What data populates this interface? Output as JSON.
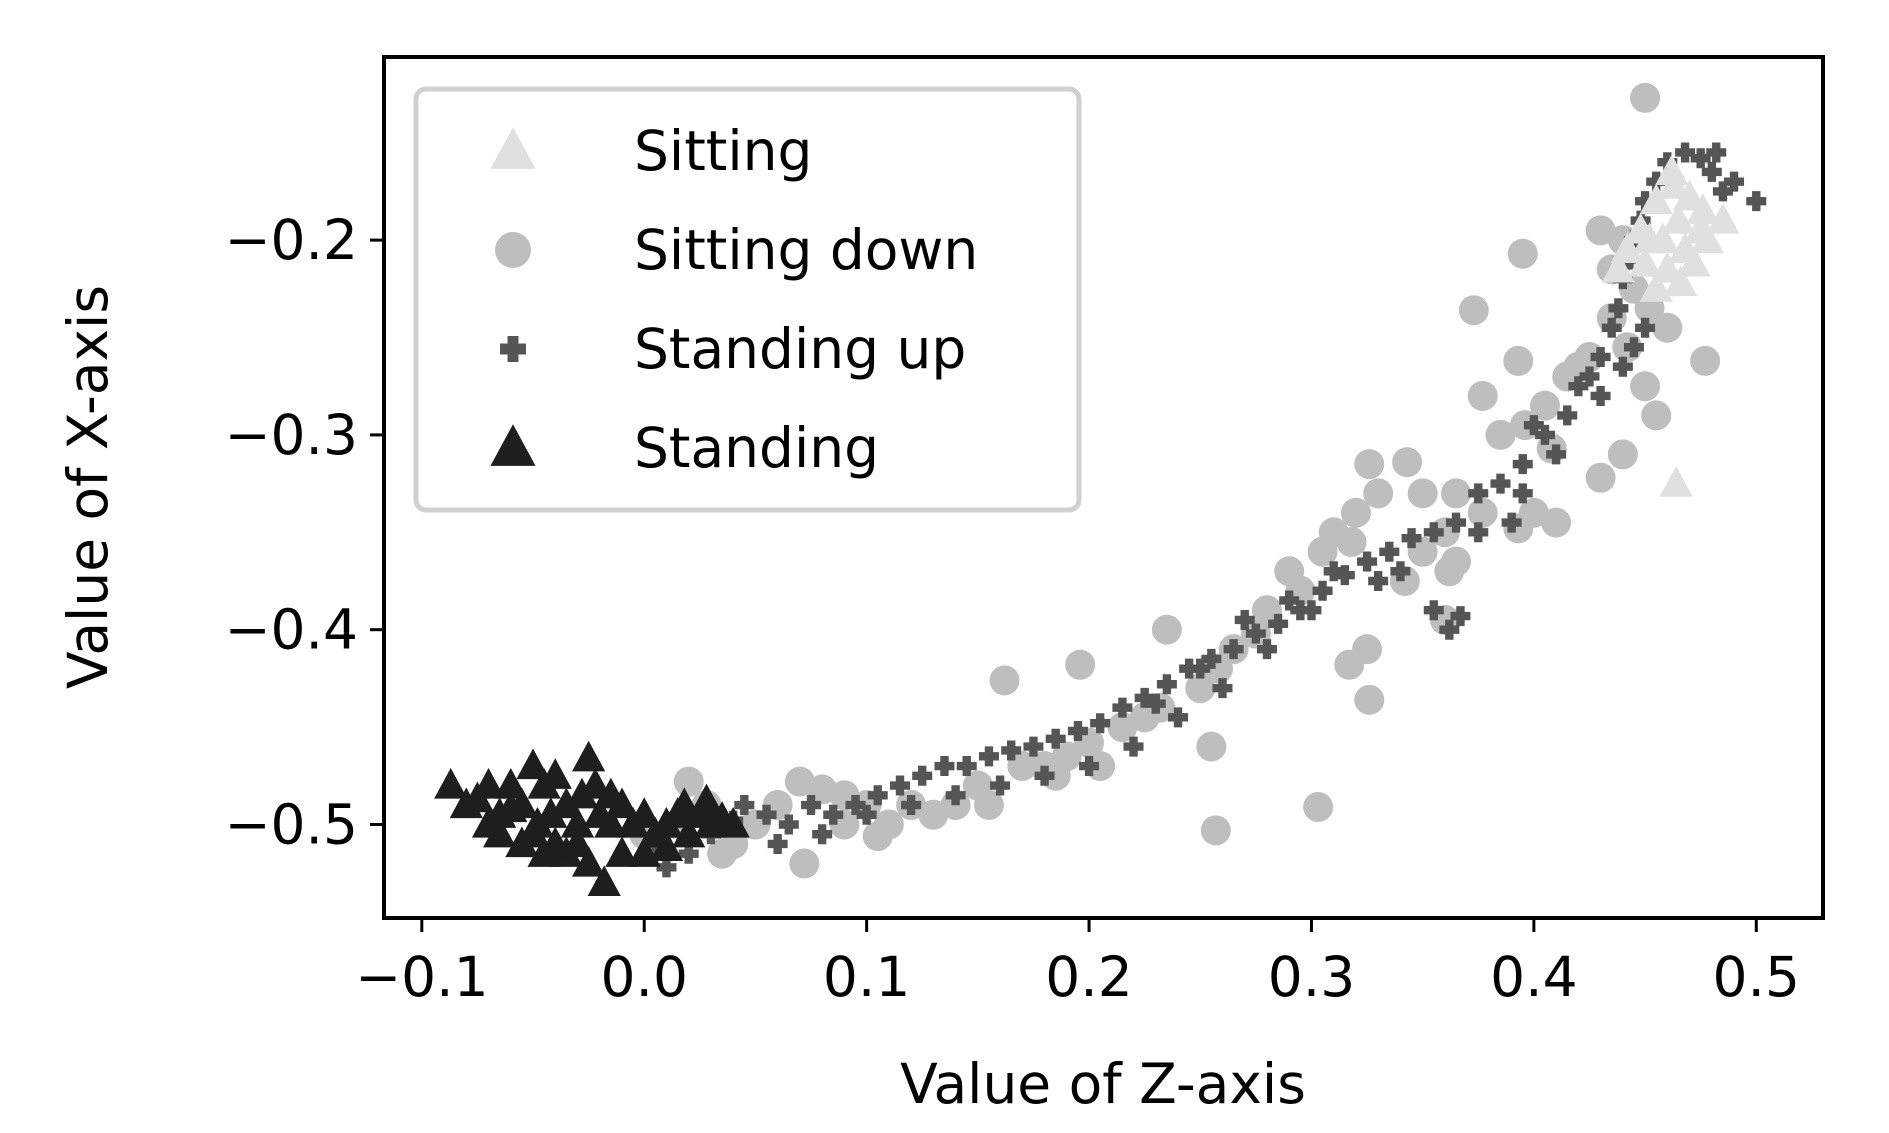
{
  "chart_data": {
    "type": "scatter",
    "title": "",
    "xlabel": "Value of Z-axis",
    "ylabel": "Value of X-axis",
    "xlim": [
      -0.117,
      0.53
    ],
    "ylim": [
      -0.548,
      -0.106
    ],
    "x_ticks": [
      -0.1,
      0.0,
      0.1,
      0.2,
      0.3,
      0.4,
      0.5
    ],
    "x_tick_labels": [
      "−0.1",
      "0.0",
      "0.1",
      "0.2",
      "0.3",
      "0.4",
      "0.5"
    ],
    "y_ticks": [
      -0.2,
      -0.3,
      -0.4,
      -0.5
    ],
    "y_tick_labels": [
      "−0.2",
      "−0.3",
      "−0.4",
      "−0.5"
    ],
    "grid": false,
    "legend_position": "top-left",
    "series": [
      {
        "name": "Sitting",
        "marker": "triangle",
        "color": "#e0e0e0",
        "points": [
          [
            0.462,
            -0.165
          ],
          [
            0.455,
            -0.18
          ],
          [
            0.47,
            -0.178
          ],
          [
            0.448,
            -0.195
          ],
          [
            0.465,
            -0.19
          ],
          [
            0.475,
            -0.195
          ],
          [
            0.442,
            -0.205
          ],
          [
            0.458,
            -0.2
          ],
          [
            0.468,
            -0.205
          ],
          [
            0.478,
            -0.2
          ],
          [
            0.45,
            -0.212
          ],
          [
            0.46,
            -0.215
          ],
          [
            0.472,
            -0.212
          ],
          [
            0.485,
            -0.19
          ],
          [
            0.438,
            -0.215
          ],
          [
            0.455,
            -0.225
          ],
          [
            0.466,
            -0.222
          ],
          [
            0.463,
            -0.172
          ],
          [
            0.452,
            -0.2
          ],
          [
            0.476,
            -0.185
          ],
          [
            0.464,
            -0.325
          ]
        ]
      },
      {
        "name": "Sitting down",
        "marker": "circle",
        "color": "#bebebe",
        "points": [
          [
            0.45,
            -0.127
          ],
          [
            0.395,
            -0.207
          ],
          [
            0.373,
            -0.236
          ],
          [
            0.393,
            -0.262
          ],
          [
            0.377,
            -0.28
          ],
          [
            0.477,
            -0.262
          ],
          [
            0.43,
            -0.195
          ],
          [
            0.44,
            -0.2
          ],
          [
            0.435,
            -0.215
          ],
          [
            0.445,
            -0.225
          ],
          [
            0.452,
            -0.235
          ],
          [
            0.46,
            -0.245
          ],
          [
            0.442,
            -0.255
          ],
          [
            0.425,
            -0.26
          ],
          [
            0.415,
            -0.27
          ],
          [
            0.405,
            -0.285
          ],
          [
            0.396,
            -0.295
          ],
          [
            0.385,
            -0.3
          ],
          [
            0.45,
            -0.275
          ],
          [
            0.455,
            -0.29
          ],
          [
            0.44,
            -0.31
          ],
          [
            0.43,
            -0.322
          ],
          [
            0.41,
            -0.345
          ],
          [
            0.393,
            -0.348
          ],
          [
            0.377,
            -0.34
          ],
          [
            0.36,
            -0.35
          ],
          [
            0.35,
            -0.36
          ],
          [
            0.342,
            -0.375
          ],
          [
            0.365,
            -0.365
          ],
          [
            0.326,
            -0.315
          ],
          [
            0.343,
            -0.314
          ],
          [
            0.35,
            -0.33
          ],
          [
            0.32,
            -0.34
          ],
          [
            0.318,
            -0.355
          ],
          [
            0.305,
            -0.36
          ],
          [
            0.295,
            -0.38
          ],
          [
            0.28,
            -0.39
          ],
          [
            0.275,
            -0.402
          ],
          [
            0.265,
            -0.41
          ],
          [
            0.258,
            -0.42
          ],
          [
            0.25,
            -0.43
          ],
          [
            0.235,
            -0.4
          ],
          [
            0.232,
            -0.44
          ],
          [
            0.225,
            -0.445
          ],
          [
            0.215,
            -0.45
          ],
          [
            0.2,
            -0.458
          ],
          [
            0.19,
            -0.465
          ],
          [
            0.18,
            -0.47
          ],
          [
            0.17,
            -0.47
          ],
          [
            0.162,
            -0.426
          ],
          [
            0.196,
            -0.418
          ],
          [
            0.255,
            -0.46
          ],
          [
            0.257,
            -0.503
          ],
          [
            0.303,
            -0.491
          ],
          [
            0.326,
            -0.436
          ],
          [
            0.317,
            -0.418
          ],
          [
            0.325,
            -0.41
          ],
          [
            0.36,
            -0.395
          ],
          [
            0.362,
            -0.37
          ],
          [
            0.4,
            -0.34
          ],
          [
            0.408,
            -0.307
          ],
          [
            0.365,
            -0.33
          ],
          [
            0.15,
            -0.48
          ],
          [
            0.14,
            -0.49
          ],
          [
            0.13,
            -0.495
          ],
          [
            0.12,
            -0.49
          ],
          [
            0.11,
            -0.5
          ],
          [
            0.1,
            -0.49
          ],
          [
            0.09,
            -0.485
          ],
          [
            0.08,
            -0.482
          ],
          [
            0.07,
            -0.478
          ],
          [
            0.06,
            -0.49
          ],
          [
            0.05,
            -0.5
          ],
          [
            0.04,
            -0.51
          ],
          [
            0.035,
            -0.515
          ],
          [
            0.072,
            -0.52
          ],
          [
            0.105,
            -0.506
          ],
          [
            0.02,
            -0.478
          ],
          [
            0.015,
            -0.5
          ],
          [
            0.0,
            -0.505
          ],
          [
            0.028,
            -0.49
          ],
          [
            0.09,
            -0.5
          ],
          [
            0.155,
            -0.49
          ],
          [
            0.185,
            -0.475
          ],
          [
            0.205,
            -0.47
          ],
          [
            0.29,
            -0.37
          ],
          [
            0.31,
            -0.35
          ],
          [
            0.33,
            -0.33
          ],
          [
            0.42,
            -0.265
          ],
          [
            0.435,
            -0.24
          ]
        ]
      },
      {
        "name": "Standing up",
        "marker": "plus",
        "color": "#555555",
        "points": [
          [
            0.045,
            -0.49
          ],
          [
            0.055,
            -0.495
          ],
          [
            0.065,
            -0.5
          ],
          [
            0.075,
            -0.49
          ],
          [
            0.085,
            -0.495
          ],
          [
            0.095,
            -0.49
          ],
          [
            0.105,
            -0.485
          ],
          [
            0.115,
            -0.48
          ],
          [
            0.125,
            -0.475
          ],
          [
            0.135,
            -0.47
          ],
          [
            0.145,
            -0.47
          ],
          [
            0.155,
            -0.465
          ],
          [
            0.165,
            -0.462
          ],
          [
            0.175,
            -0.46
          ],
          [
            0.185,
            -0.456
          ],
          [
            0.195,
            -0.452
          ],
          [
            0.205,
            -0.448
          ],
          [
            0.215,
            -0.44
          ],
          [
            0.225,
            -0.435
          ],
          [
            0.235,
            -0.428
          ],
          [
            0.245,
            -0.42
          ],
          [
            0.255,
            -0.415
          ],
          [
            0.265,
            -0.41
          ],
          [
            0.275,
            -0.402
          ],
          [
            0.285,
            -0.397
          ],
          [
            0.295,
            -0.39
          ],
          [
            0.305,
            -0.38
          ],
          [
            0.315,
            -0.372
          ],
          [
            0.325,
            -0.365
          ],
          [
            0.335,
            -0.36
          ],
          [
            0.345,
            -0.353
          ],
          [
            0.355,
            -0.35
          ],
          [
            0.365,
            -0.345
          ],
          [
            0.375,
            -0.33
          ],
          [
            0.385,
            -0.325
          ],
          [
            0.395,
            -0.315
          ],
          [
            0.405,
            -0.3
          ],
          [
            0.415,
            -0.29
          ],
          [
            0.42,
            -0.275
          ],
          [
            0.425,
            -0.27
          ],
          [
            0.43,
            -0.26
          ],
          [
            0.435,
            -0.245
          ],
          [
            0.438,
            -0.235
          ],
          [
            0.44,
            -0.22
          ],
          [
            0.443,
            -0.21
          ],
          [
            0.445,
            -0.2
          ],
          [
            0.448,
            -0.19
          ],
          [
            0.45,
            -0.18
          ],
          [
            0.455,
            -0.17
          ],
          [
            0.46,
            -0.16
          ],
          [
            0.468,
            -0.155
          ],
          [
            0.475,
            -0.158
          ],
          [
            0.482,
            -0.155
          ],
          [
            0.49,
            -0.17
          ],
          [
            0.5,
            -0.18
          ],
          [
            0.485,
            -0.175
          ],
          [
            0.48,
            -0.165
          ],
          [
            0.362,
            -0.4
          ],
          [
            0.355,
            -0.39
          ],
          [
            0.367,
            -0.393
          ],
          [
            0.34,
            -0.37
          ],
          [
            0.33,
            -0.375
          ],
          [
            0.3,
            -0.39
          ],
          [
            0.28,
            -0.41
          ],
          [
            0.26,
            -0.43
          ],
          [
            0.24,
            -0.445
          ],
          [
            0.22,
            -0.46
          ],
          [
            0.2,
            -0.47
          ],
          [
            0.18,
            -0.475
          ],
          [
            0.16,
            -0.48
          ],
          [
            0.14,
            -0.485
          ],
          [
            0.12,
            -0.49
          ],
          [
            0.1,
            -0.495
          ],
          [
            0.08,
            -0.505
          ],
          [
            0.06,
            -0.51
          ],
          [
            0.01,
            -0.522
          ],
          [
            0.02,
            -0.515
          ],
          [
            0.005,
            -0.51
          ],
          [
            0.03,
            -0.505
          ],
          [
            0.04,
            -0.498
          ],
          [
            0.395,
            -0.33
          ],
          [
            0.41,
            -0.31
          ],
          [
            0.39,
            -0.345
          ],
          [
            0.375,
            -0.35
          ],
          [
            0.4,
            -0.295
          ],
          [
            0.43,
            -0.28
          ],
          [
            0.445,
            -0.255
          ],
          [
            0.45,
            -0.245
          ],
          [
            0.44,
            -0.265
          ],
          [
            0.31,
            -0.37
          ],
          [
            0.29,
            -0.385
          ],
          [
            0.27,
            -0.395
          ],
          [
            0.25,
            -0.42
          ],
          [
            0.23,
            -0.438
          ]
        ]
      },
      {
        "name": "Standing",
        "marker": "triangle",
        "color": "#1e1e1e",
        "points": [
          [
            -0.087,
            -0.48
          ],
          [
            -0.08,
            -0.49
          ],
          [
            -0.075,
            -0.487
          ],
          [
            -0.07,
            -0.48
          ],
          [
            -0.065,
            -0.495
          ],
          [
            -0.06,
            -0.48
          ],
          [
            -0.055,
            -0.49
          ],
          [
            -0.05,
            -0.47
          ],
          [
            -0.048,
            -0.5
          ],
          [
            -0.045,
            -0.48
          ],
          [
            -0.04,
            -0.475
          ],
          [
            -0.035,
            -0.49
          ],
          [
            -0.03,
            -0.5
          ],
          [
            -0.025,
            -0.466
          ],
          [
            -0.022,
            -0.48
          ],
          [
            -0.02,
            -0.495
          ],
          [
            -0.015,
            -0.5
          ],
          [
            -0.01,
            -0.49
          ],
          [
            -0.005,
            -0.5
          ],
          [
            0.0,
            -0.495
          ],
          [
            0.005,
            -0.505
          ],
          [
            0.01,
            -0.5
          ],
          [
            0.015,
            -0.495
          ],
          [
            0.02,
            -0.505
          ],
          [
            0.025,
            -0.495
          ],
          [
            0.03,
            -0.5
          ],
          [
            0.035,
            -0.497
          ],
          [
            0.04,
            -0.5
          ],
          [
            -0.018,
            -0.53
          ],
          [
            -0.025,
            -0.52
          ],
          [
            -0.035,
            -0.515
          ],
          [
            -0.045,
            -0.515
          ],
          [
            -0.055,
            -0.51
          ],
          [
            -0.065,
            -0.505
          ],
          [
            -0.07,
            -0.5
          ],
          [
            -0.05,
            -0.505
          ],
          [
            -0.04,
            -0.51
          ],
          [
            -0.03,
            -0.51
          ],
          [
            -0.01,
            -0.515
          ],
          [
            0.0,
            -0.515
          ],
          [
            0.01,
            -0.512
          ],
          [
            -0.06,
            -0.492
          ],
          [
            -0.042,
            -0.495
          ],
          [
            -0.028,
            -0.485
          ],
          [
            -0.015,
            -0.485
          ],
          [
            0.018,
            -0.49
          ],
          [
            0.028,
            -0.488
          ]
        ]
      }
    ]
  }
}
